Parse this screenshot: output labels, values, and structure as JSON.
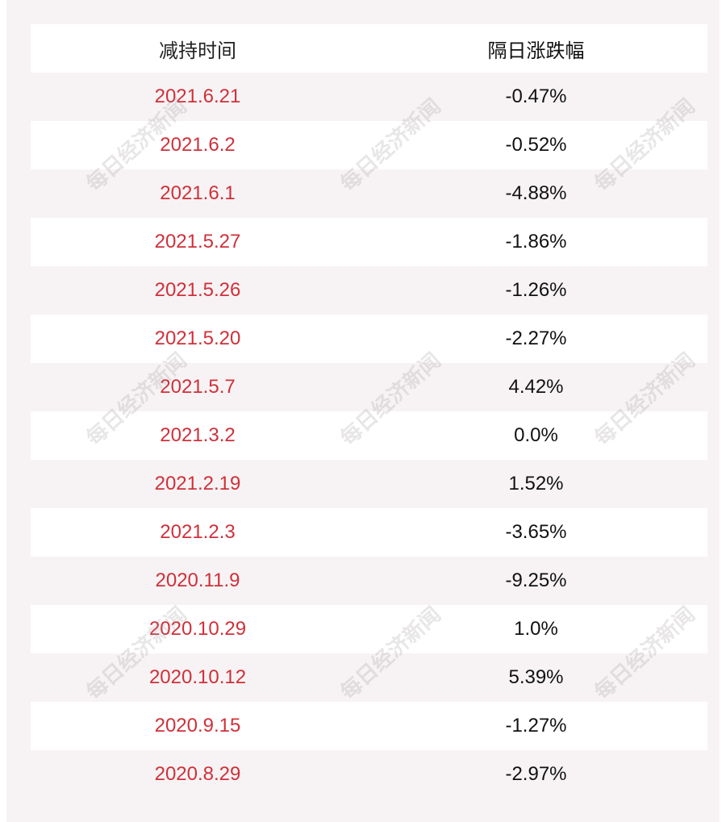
{
  "table": {
    "headers": [
      "减持时间",
      "隔日涨跌幅"
    ],
    "rows": [
      [
        "2021.6.21",
        "-0.47%"
      ],
      [
        "2021.6.2",
        "-0.52%"
      ],
      [
        "2021.6.1",
        "-4.88%"
      ],
      [
        "2021.5.27",
        "-1.86%"
      ],
      [
        "2021.5.26",
        "-1.26%"
      ],
      [
        "2021.5.20",
        "-2.27%"
      ],
      [
        "2021.5.7",
        "4.42%"
      ],
      [
        "2021.3.2",
        "0.0%"
      ],
      [
        "2021.2.19",
        "1.52%"
      ],
      [
        "2021.2.3",
        "-3.65%"
      ],
      [
        "2020.11.9",
        "-9.25%"
      ],
      [
        "2020.10.29",
        "1.0%"
      ],
      [
        "2020.10.12",
        "5.39%"
      ],
      [
        "2020.9.15",
        "-1.27%"
      ],
      [
        "2020.8.29",
        "-2.97%"
      ]
    ]
  },
  "watermark": "每日经济新闻"
}
